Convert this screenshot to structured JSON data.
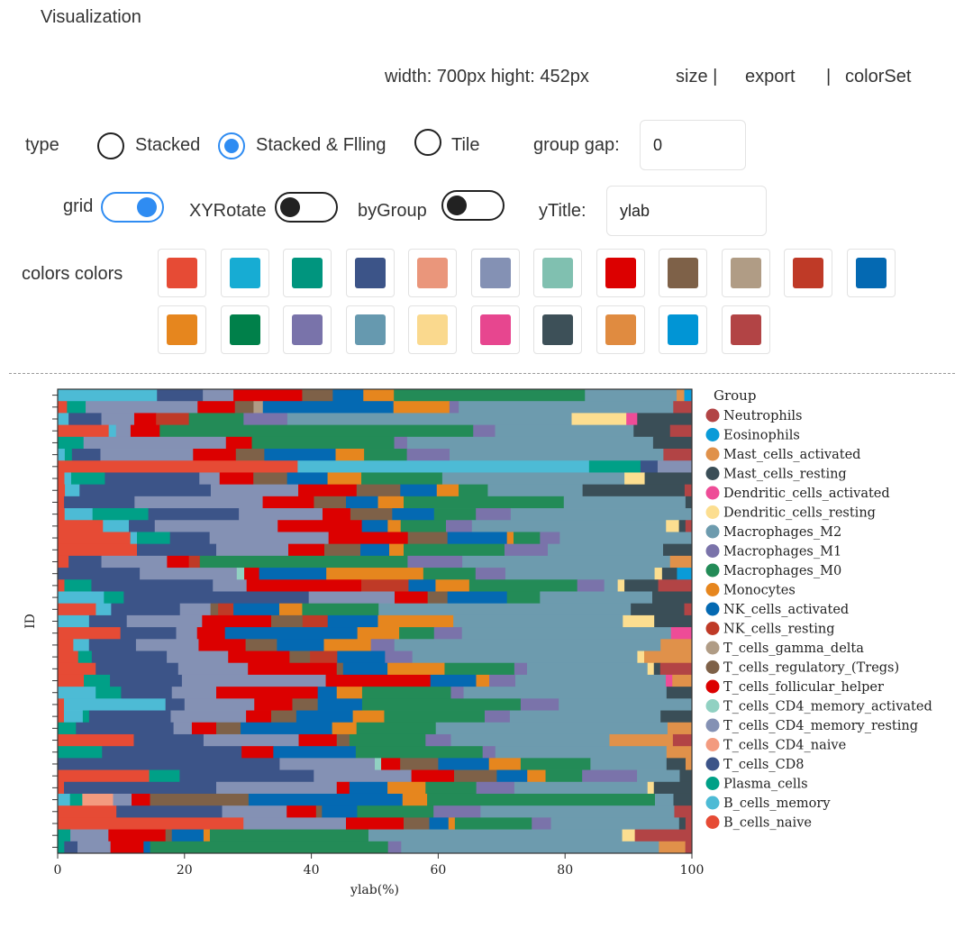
{
  "panel": {
    "title": "Visualization",
    "size_text": "width: 700px  hight: 452px",
    "size_link": "size |",
    "export_link": "export",
    "sep": "|",
    "colorset_link": "colorSet"
  },
  "controls": {
    "type_label": "type",
    "type_options": [
      "Stacked",
      "Stacked & Flling",
      "Tile"
    ],
    "type_selected": "Stacked & Flling",
    "group_gap_label": "group gap:",
    "group_gap_value": "0",
    "grid_label": "grid",
    "grid_on": true,
    "xyrotate_label": "XYRotate",
    "xyrotate_on": false,
    "bygroup_label": "byGroup",
    "bygroup_on": false,
    "ytitle_label": "yTitle:",
    "ytitle_value": "ylab",
    "colors_label": "colors colors",
    "colors": [
      "#E64B35",
      "#17ACD3",
      "#00957E",
      "#3C5488",
      "#EA967B",
      "#8491B4",
      "#80C0B0",
      "#DC0000",
      "#7E6148",
      "#B09C85",
      "#BF3A27",
      "#0469B2",
      "#E6861E",
      "#00804A",
      "#7973AA",
      "#6699AF",
      "#FAD98E",
      "#E7468F",
      "#3D5058",
      "#E08B40",
      "#0195D5",
      "#B24445"
    ]
  },
  "chart_data": {
    "type": "bar",
    "orientation": "horizontal",
    "stacked": "percent",
    "xlabel": "ylab(%)",
    "ylabel": "ID",
    "xlim": [
      0,
      100
    ],
    "xticks": [
      0,
      20,
      40,
      60,
      80,
      100
    ],
    "grid": true,
    "legend_title": "Group",
    "legend_position": "right",
    "series_names": [
      "B_cells_naive",
      "B_cells_memory",
      "Plasma_cells",
      "T_cells_CD8",
      "T_cells_CD4_naive",
      "T_cells_CD4_memory_resting",
      "T_cells_CD4_memory_activated",
      "T_cells_follicular_helper",
      "T_cells_regulatory_(Tregs)",
      "T_cells_gamma_delta",
      "NK_cells_resting",
      "NK_cells_activated",
      "Monocytes",
      "Macrophages_M0",
      "Macrophages_M1",
      "Macrophages_M2",
      "Dendritic_cells_resting",
      "Dendritic_cells_activated",
      "Mast_cells_resting",
      "Mast_cells_activated",
      "Eosinophils",
      "Neutrophils"
    ],
    "series_colors": [
      "#E64B35",
      "#4DBBD5",
      "#00A087",
      "#3C5488",
      "#F39B7F",
      "#8491B4",
      "#91D1C2",
      "#DC0000",
      "#7E6148",
      "#B09C85",
      "#BF3A27",
      "#0469B2",
      "#E6861E",
      "#238B57",
      "#7A73AA",
      "#6D9BAE",
      "#FCDE90",
      "#EE4C97",
      "#3A4E57",
      "#E0914A",
      "#0A9BD8",
      "#B24445"
    ],
    "rows": [
      [
        0,
        13,
        0,
        6,
        0,
        4,
        0,
        9,
        4,
        0,
        0,
        4,
        4,
        25,
        0,
        12,
        0,
        0,
        0,
        1,
        1,
        0
      ],
      [
        1,
        0,
        2,
        0,
        0,
        12,
        0,
        4,
        2,
        1,
        0,
        14,
        6,
        0,
        1,
        23,
        0,
        0,
        0,
        0,
        0,
        2
      ],
      [
        0,
        1,
        0,
        3,
        0,
        3,
        0,
        2,
        0,
        0,
        3,
        0,
        0,
        5,
        4,
        26,
        5,
        1,
        5,
        0,
        0,
        0
      ],
      [
        7,
        1,
        0,
        0,
        0,
        2,
        0,
        4,
        0,
        0,
        0,
        0,
        0,
        43,
        3,
        19,
        0,
        0,
        5,
        0,
        0,
        3
      ],
      [
        0,
        0,
        2,
        0,
        0,
        11,
        0,
        2,
        0,
        0,
        0,
        0,
        0,
        11,
        1,
        19,
        0,
        0,
        3,
        0,
        0,
        0
      ],
      [
        0,
        1,
        1,
        4,
        0,
        13,
        0,
        6,
        4,
        0,
        0,
        10,
        4,
        6,
        6,
        30,
        0,
        0,
        0,
        0,
        0,
        4
      ],
      [
        14,
        17,
        3,
        1,
        0,
        2,
        0,
        0,
        0,
        0,
        0,
        0,
        0,
        0,
        0,
        0,
        0,
        0,
        0,
        0,
        0,
        0
      ],
      [
        1,
        1,
        5,
        14,
        0,
        3,
        0,
        5,
        5,
        0,
        0,
        6,
        5,
        12,
        0,
        27,
        3,
        0,
        7,
        0,
        0,
        0
      ],
      [
        1,
        2,
        0,
        18,
        0,
        12,
        0,
        8,
        6,
        0,
        0,
        5,
        3,
        4,
        0,
        13,
        0,
        0,
        14,
        0,
        0,
        1
      ],
      [
        1,
        0,
        0,
        11,
        0,
        20,
        0,
        8,
        5,
        0,
        0,
        5,
        4,
        25,
        0,
        19,
        0,
        0,
        1,
        0,
        0,
        0
      ],
      [
        1,
        4,
        8,
        13,
        0,
        12,
        0,
        4,
        6,
        0,
        0,
        6,
        0,
        6,
        5,
        26,
        0,
        0,
        0,
        0,
        0,
        0
      ],
      [
        7,
        4,
        0,
        4,
        0,
        19,
        0,
        13,
        0,
        0,
        0,
        4,
        2,
        7,
        4,
        30,
        2,
        0,
        1,
        0,
        0,
        1
      ],
      [
        11,
        1,
        5,
        6,
        0,
        18,
        0,
        12,
        6,
        0,
        0,
        9,
        1,
        4,
        3,
        20,
        0,
        0,
        0,
        0,
        0,
        0
      ],
      [
        11,
        0,
        0,
        11,
        0,
        10,
        0,
        5,
        5,
        0,
        0,
        4,
        2,
        14,
        6,
        16,
        0,
        0,
        4,
        0,
        0,
        0
      ],
      [
        1,
        0,
        0,
        3,
        0,
        6,
        0,
        2,
        0,
        0,
        1,
        0,
        0,
        19,
        5,
        19,
        0,
        0,
        0,
        2,
        0,
        0
      ],
      [
        0,
        0,
        0,
        11,
        0,
        13,
        1,
        2,
        0,
        0,
        0,
        9,
        13,
        7,
        4,
        20,
        1,
        0,
        2,
        0,
        2,
        0
      ],
      [
        1,
        0,
        4,
        18,
        0,
        5,
        0,
        17,
        0,
        0,
        7,
        4,
        5,
        16,
        4,
        2,
        1,
        0,
        5,
        0,
        0,
        5
      ],
      [
        0,
        7,
        3,
        28,
        0,
        13,
        0,
        5,
        3,
        0,
        0,
        9,
        0,
        5,
        0,
        17,
        0,
        0,
        6,
        0,
        0,
        0
      ],
      [
        5,
        2,
        0,
        9,
        0,
        4,
        0,
        0,
        1,
        0,
        2,
        6,
        3,
        10,
        0,
        33,
        0,
        0,
        7,
        0,
        0,
        1
      ],
      [
        0,
        5,
        0,
        6,
        0,
        12,
        0,
        11,
        5,
        0,
        4,
        8,
        12,
        0,
        0,
        27,
        5,
        0,
        6,
        0,
        0,
        0
      ],
      [
        9,
        0,
        0,
        8,
        0,
        3,
        0,
        4,
        0,
        0,
        0,
        19,
        6,
        5,
        4,
        30,
        0,
        3,
        0,
        0,
        0,
        0
      ],
      [
        2,
        2,
        0,
        6,
        0,
        8,
        0,
        6,
        4,
        0,
        0,
        6,
        6,
        0,
        3,
        34,
        0,
        0,
        0,
        4,
        0,
        0
      ],
      [
        3,
        0,
        2,
        11,
        0,
        9,
        0,
        9,
        3,
        0,
        4,
        7,
        0,
        0,
        4,
        33,
        1,
        0,
        0,
        7,
        0,
        0
      ],
      [
        6,
        0,
        0,
        13,
        0,
        11,
        0,
        14,
        1,
        0,
        0,
        7,
        9,
        11,
        2,
        19,
        1,
        0,
        1,
        0,
        0,
        5
      ],
      [
        4,
        0,
        4,
        11,
        0,
        22,
        0,
        16,
        0,
        0,
        0,
        7,
        2,
        0,
        4,
        23,
        0,
        1,
        0,
        3,
        0,
        0
      ],
      [
        0,
        6,
        4,
        8,
        0,
        7,
        0,
        16,
        0,
        0,
        0,
        3,
        4,
        14,
        2,
        32,
        0,
        0,
        4,
        0,
        0,
        0
      ],
      [
        1,
        16,
        0,
        3,
        0,
        11,
        0,
        6,
        4,
        0,
        0,
        7,
        0,
        25,
        6,
        21,
        0,
        0,
        0,
        0,
        0,
        0
      ],
      [
        1,
        3,
        1,
        13,
        0,
        12,
        0,
        4,
        4,
        0,
        0,
        9,
        5,
        16,
        4,
        24,
        0,
        0,
        5,
        0,
        0,
        0
      ],
      [
        0,
        0,
        3,
        16,
        0,
        3,
        0,
        4,
        4,
        0,
        0,
        15,
        4,
        13,
        0,
        38,
        0,
        0,
        0,
        4,
        0,
        0
      ],
      [
        12,
        0,
        0,
        11,
        0,
        15,
        0,
        6,
        2,
        0,
        0,
        0,
        0,
        12,
        4,
        25,
        0,
        0,
        0,
        10,
        0,
        3
      ],
      [
        0,
        0,
        7,
        22,
        0,
        0,
        0,
        5,
        0,
        0,
        0,
        13,
        0,
        20,
        2,
        27,
        0,
        0,
        0,
        4,
        0,
        0
      ],
      [
        0,
        0,
        0,
        35,
        0,
        15,
        1,
        3,
        6,
        0,
        0,
        8,
        5,
        11,
        0,
        12,
        0,
        0,
        3,
        1,
        0,
        0
      ],
      [
        15,
        0,
        5,
        22,
        0,
        16,
        0,
        7,
        7,
        0,
        0,
        5,
        3,
        6,
        9,
        7,
        0,
        0,
        2,
        0,
        0,
        0
      ],
      [
        1,
        0,
        0,
        24,
        0,
        19,
        0,
        2,
        0,
        0,
        0,
        6,
        6,
        8,
        6,
        21,
        1,
        0,
        6,
        0,
        0,
        0
      ],
      [
        0,
        2,
        2,
        0,
        5,
        3,
        0,
        3,
        16,
        0,
        0,
        25,
        4,
        37,
        0,
        3,
        0,
        0,
        3,
        0,
        0,
        0
      ],
      [
        10,
        0,
        0,
        18,
        0,
        11,
        0,
        5,
        1,
        0,
        0,
        6,
        0,
        13,
        8,
        33,
        0,
        0,
        0,
        0,
        0,
        3
      ],
      [
        29,
        0,
        0,
        0,
        0,
        16,
        0,
        9,
        4,
        0,
        0,
        3,
        1,
        12,
        3,
        20,
        0,
        0,
        1,
        0,
        0,
        1
      ],
      [
        0,
        0,
        2,
        0,
        0,
        6,
        0,
        9,
        1,
        0,
        0,
        5,
        1,
        25,
        0,
        40,
        2,
        0,
        0,
        0,
        0,
        9
      ],
      [
        0,
        0,
        1,
        2,
        0,
        5,
        0,
        5,
        0,
        0,
        0,
        1,
        0,
        36,
        2,
        39,
        0,
        0,
        0,
        4,
        0,
        1
      ]
    ]
  }
}
